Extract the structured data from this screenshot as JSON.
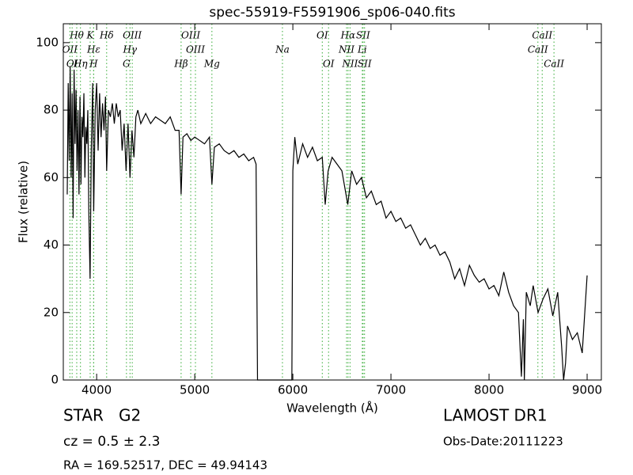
{
  "chart_data": {
    "type": "line",
    "title": "spec-55919-F5591906_sp06-040.fits",
    "x_label": "Wavelength (Å)",
    "y_label": "Flux (relative)",
    "xlim": [
      3660,
      9145
    ],
    "ylim": [
      0,
      105.6
    ],
    "xticks": [
      4000,
      5000,
      6000,
      7000,
      8000,
      9000
    ],
    "yticks": [
      0,
      20,
      40,
      60,
      80,
      100
    ],
    "color": "#000000",
    "line_color": "#33aa33",
    "x": [
      3700,
      3710,
      3720,
      3730,
      3740,
      3750,
      3760,
      3770,
      3780,
      3790,
      3800,
      3810,
      3820,
      3830,
      3840,
      3850,
      3860,
      3870,
      3880,
      3890,
      3900,
      3910,
      3920,
      3933,
      3945,
      3960,
      3970,
      3985,
      4000,
      4015,
      4030,
      4045,
      4060,
      4075,
      4090,
      4102,
      4120,
      4140,
      4160,
      4180,
      4200,
      4220,
      4240,
      4260,
      4280,
      4300,
      4320,
      4340,
      4360,
      4380,
      4400,
      4420,
      4450,
      4500,
      4550,
      4600,
      4650,
      4700,
      4750,
      4800,
      4840,
      4861,
      4880,
      4920,
      4960,
      5000,
      5050,
      5100,
      5150,
      5175,
      5200,
      5250,
      5300,
      5350,
      5400,
      5450,
      5500,
      5550,
      5600,
      5625,
      5640,
      5990,
      6000,
      6020,
      6050,
      6100,
      6150,
      6200,
      6250,
      6300,
      6330,
      6360,
      6400,
      6450,
      6500,
      6560,
      6600,
      6650,
      6700,
      6750,
      6800,
      6850,
      6900,
      6950,
      7000,
      7050,
      7100,
      7150,
      7200,
      7250,
      7300,
      7350,
      7400,
      7450,
      7500,
      7550,
      7600,
      7650,
      7700,
      7750,
      7800,
      7850,
      7900,
      7950,
      8000,
      8050,
      8100,
      8150,
      8200,
      8250,
      8300,
      8330,
      8350,
      8360,
      8380,
      8420,
      8450,
      8500,
      8550,
      8600,
      8650,
      8700,
      8740,
      8760,
      8780,
      8800,
      8850,
      8900,
      8950,
      9000
    ],
    "values": [
      55,
      88,
      65,
      93,
      60,
      85,
      48,
      92,
      70,
      86,
      62,
      80,
      55,
      84,
      58,
      78,
      72,
      85,
      60,
      75,
      70,
      80,
      50,
      30,
      68,
      88,
      50,
      80,
      88,
      68,
      85,
      72,
      82,
      74,
      84,
      62,
      80,
      78,
      82,
      76,
      82,
      78,
      80,
      68,
      76,
      62,
      76,
      60,
      74,
      66,
      78,
      80,
      76,
      79,
      76,
      78,
      77,
      76,
      78,
      74,
      74,
      55,
      72,
      73,
      71,
      72,
      71,
      70,
      72,
      58,
      69,
      70,
      68,
      67,
      68,
      66,
      67,
      65,
      66,
      64,
      0,
      0,
      62,
      72,
      64,
      70,
      66,
      69,
      65,
      66,
      52,
      62,
      66,
      64,
      62,
      52,
      62,
      58,
      60,
      54,
      56,
      52,
      53,
      48,
      50,
      47,
      48,
      45,
      46,
      43,
      40,
      42,
      39,
      40,
      37,
      38,
      35,
      30,
      33,
      28,
      34,
      31,
      29,
      30,
      27,
      28,
      25,
      32,
      26,
      22,
      20,
      1,
      18,
      0,
      26,
      22,
      28,
      20,
      24,
      27,
      19,
      26,
      10,
      0,
      5,
      16,
      12,
      14,
      8,
      31
    ],
    "lines": [
      {
        "label": "Hθ",
        "wavelength": 3797,
        "row": 0
      },
      {
        "label": "K",
        "wavelength": 3934,
        "row": 0
      },
      {
        "label": "Hδ",
        "wavelength": 4102,
        "row": 0
      },
      {
        "label": "OIII",
        "wavelength": 4363,
        "row": 0
      },
      {
        "label": "OIII",
        "wavelength": 4959,
        "row": 0
      },
      {
        "label": "OI",
        "wavelength": 6300,
        "row": 0
      },
      {
        "label": "Hα",
        "wavelength": 6563,
        "row": 0
      },
      {
        "label": "SII",
        "wavelength": 6716,
        "row": 0
      },
      {
        "label": "CaII",
        "wavelength": 8542,
        "row": 0
      },
      {
        "label": "OII",
        "wavelength": 3727,
        "row": 1
      },
      {
        "label": "Hε",
        "wavelength": 3970,
        "row": 1
      },
      {
        "label": "Hγ",
        "wavelength": 4340,
        "row": 1
      },
      {
        "label": "OIII",
        "wavelength": 5007,
        "row": 1
      },
      {
        "label": "Na",
        "wavelength": 5894,
        "row": 1
      },
      {
        "label": "NII",
        "wavelength": 6548,
        "row": 1
      },
      {
        "label": "Li",
        "wavelength": 6708,
        "row": 1
      },
      {
        "label": "CaII",
        "wavelength": 8498,
        "row": 1
      },
      {
        "label": "OI",
        "wavelength": 3750,
        "row": 2
      },
      {
        "label": "Hη",
        "wavelength": 3835,
        "row": 2
      },
      {
        "label": "H",
        "wavelength": 3969,
        "row": 2
      },
      {
        "label": "G",
        "wavelength": 4304,
        "row": 2
      },
      {
        "label": "Hβ",
        "wavelength": 4861,
        "row": 2
      },
      {
        "label": "Mg",
        "wavelength": 5175,
        "row": 2
      },
      {
        "label": "OI",
        "wavelength": 6364,
        "row": 2
      },
      {
        "label": "NII",
        "wavelength": 6583,
        "row": 2
      },
      {
        "label": "SII",
        "wavelength": 6731,
        "row": 2
      },
      {
        "label": "CaII",
        "wavelength": 8662,
        "row": 2
      }
    ],
    "object_class": "STAR   G2",
    "redshift": "cz = 0.5 ± 2.3",
    "coords": "RA = 169.52517, DEC = 49.94143",
    "survey": "LAMOST DR1",
    "obs_date": "Obs-Date:20111223"
  }
}
